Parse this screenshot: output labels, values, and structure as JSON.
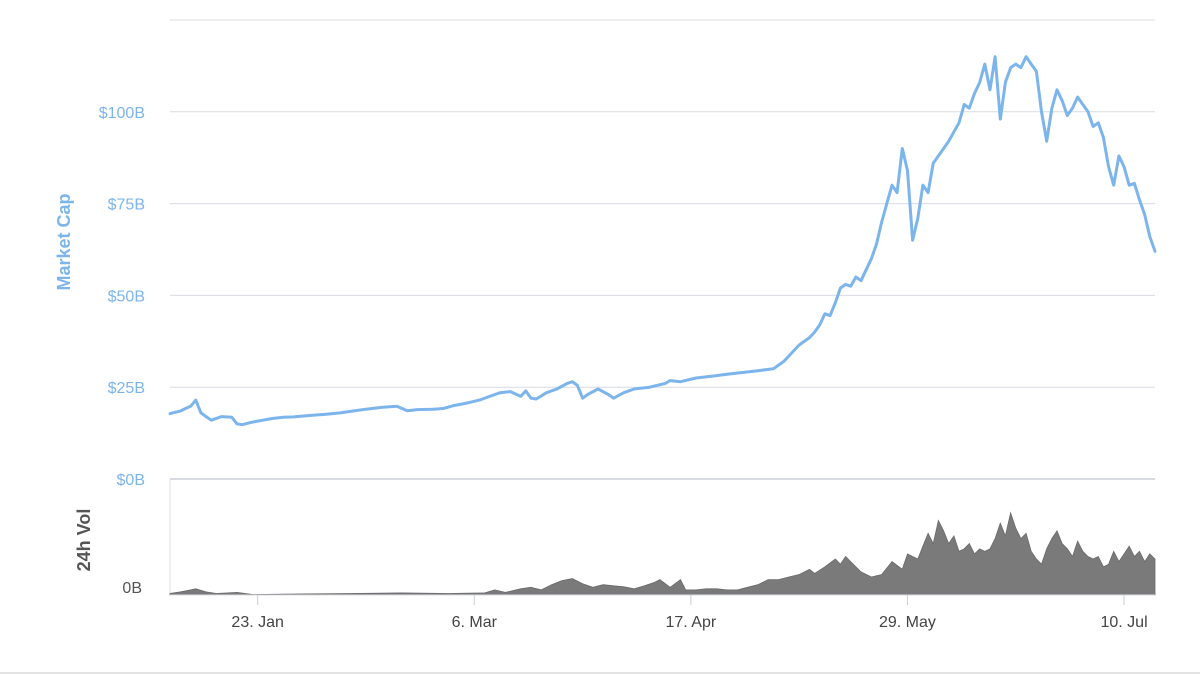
{
  "chart_data": [
    {
      "type": "line",
      "ylabel": "Market Cap",
      "ylim": [
        0,
        125
      ],
      "y_ticks": [
        {
          "value": 0,
          "label": "$0B"
        },
        {
          "value": 25,
          "label": "$25B"
        },
        {
          "value": 50,
          "label": "$50B"
        },
        {
          "value": 75,
          "label": "$75B"
        },
        {
          "value": 100,
          "label": "$100B"
        }
      ],
      "grid": true,
      "color": "#7cb5ec",
      "y_unit": "USD billions",
      "x_range": [
        "2017-01-06",
        "2017-07-16"
      ],
      "series": [
        {
          "points": [
            [
              "2017-01-06",
              17.8
            ],
            [
              "2017-01-08",
              18.5
            ],
            [
              "2017-01-09",
              19.2
            ],
            [
              "2017-01-10",
              19.8
            ],
            [
              "2017-01-11",
              21.5
            ],
            [
              "2017-01-12",
              18.0
            ],
            [
              "2017-01-13",
              17.0
            ],
            [
              "2017-01-14",
              16.0
            ],
            [
              "2017-01-16",
              17.0
            ],
            [
              "2017-01-18",
              16.8
            ],
            [
              "2017-01-19",
              15.0
            ],
            [
              "2017-01-20",
              14.8
            ],
            [
              "2017-01-22",
              15.5
            ],
            [
              "2017-01-24",
              16.0
            ],
            [
              "2017-01-26",
              16.5
            ],
            [
              "2017-01-28",
              16.8
            ],
            [
              "2017-01-30",
              16.9
            ],
            [
              "2017-02-02",
              17.3
            ],
            [
              "2017-02-05",
              17.6
            ],
            [
              "2017-02-08",
              18.0
            ],
            [
              "2017-02-10",
              18.4
            ],
            [
              "2017-02-13",
              19.0
            ],
            [
              "2017-02-16",
              19.5
            ],
            [
              "2017-02-19",
              19.8
            ],
            [
              "2017-02-21",
              18.6
            ],
            [
              "2017-02-23",
              18.9
            ],
            [
              "2017-02-26",
              19.0
            ],
            [
              "2017-02-28",
              19.2
            ],
            [
              "2017-03-02",
              20.0
            ],
            [
              "2017-03-05",
              20.8
            ],
            [
              "2017-03-07",
              21.5
            ],
            [
              "2017-03-09",
              22.5
            ],
            [
              "2017-03-11",
              23.5
            ],
            [
              "2017-03-13",
              23.8
            ],
            [
              "2017-03-15",
              22.5
            ],
            [
              "2017-03-16",
              24.0
            ],
            [
              "2017-03-17",
              22.0
            ],
            [
              "2017-03-18",
              21.8
            ],
            [
              "2017-03-20",
              23.5
            ],
            [
              "2017-03-22",
              24.5
            ],
            [
              "2017-03-24",
              26.0
            ],
            [
              "2017-03-25",
              26.5
            ],
            [
              "2017-03-26",
              25.5
            ],
            [
              "2017-03-27",
              22.0
            ],
            [
              "2017-03-28",
              23.0
            ],
            [
              "2017-03-30",
              24.5
            ],
            [
              "2017-04-01",
              23.0
            ],
            [
              "2017-04-02",
              22.0
            ],
            [
              "2017-04-04",
              23.5
            ],
            [
              "2017-04-06",
              24.5
            ],
            [
              "2017-04-09",
              25.0
            ],
            [
              "2017-04-12",
              26.0
            ],
            [
              "2017-04-13",
              26.8
            ],
            [
              "2017-04-15",
              26.5
            ],
            [
              "2017-04-18",
              27.5
            ],
            [
              "2017-04-21",
              28.0
            ],
            [
              "2017-04-24",
              28.5
            ],
            [
              "2017-04-27",
              29.0
            ],
            [
              "2017-04-30",
              29.5
            ],
            [
              "2017-05-03",
              30.0
            ],
            [
              "2017-05-05",
              32.0
            ],
            [
              "2017-05-07",
              35.0
            ],
            [
              "2017-05-08",
              36.5
            ],
            [
              "2017-05-10",
              38.5
            ],
            [
              "2017-05-11",
              40.0
            ],
            [
              "2017-05-12",
              42.0
            ],
            [
              "2017-05-13",
              45.0
            ],
            [
              "2017-05-14",
              44.5
            ],
            [
              "2017-05-15",
              48.0
            ],
            [
              "2017-05-16",
              52.0
            ],
            [
              "2017-05-17",
              53.0
            ],
            [
              "2017-05-18",
              52.5
            ],
            [
              "2017-05-19",
              55.0
            ],
            [
              "2017-05-20",
              54.0
            ],
            [
              "2017-05-21",
              57.0
            ],
            [
              "2017-05-22",
              60.0
            ],
            [
              "2017-05-23",
              64.0
            ],
            [
              "2017-05-24",
              70.0
            ],
            [
              "2017-05-25",
              75.0
            ],
            [
              "2017-05-26",
              80.0
            ],
            [
              "2017-05-27",
              78.0
            ],
            [
              "2017-05-28",
              90.0
            ],
            [
              "2017-05-29",
              84.0
            ],
            [
              "2017-05-30",
              65.0
            ],
            [
              "2017-05-31",
              71.0
            ],
            [
              "2017-06-01",
              80.0
            ],
            [
              "2017-06-02",
              78.0
            ],
            [
              "2017-06-03",
              86.0
            ],
            [
              "2017-06-04",
              88.0
            ],
            [
              "2017-06-05",
              90.0
            ],
            [
              "2017-06-06",
              92.0
            ],
            [
              "2017-06-08",
              97.0
            ],
            [
              "2017-06-09",
              102.0
            ],
            [
              "2017-06-10",
              101.0
            ],
            [
              "2017-06-11",
              105.0
            ],
            [
              "2017-06-12",
              108.0
            ],
            [
              "2017-06-13",
              113.0
            ],
            [
              "2017-06-14",
              106.0
            ],
            [
              "2017-06-15",
              115.0
            ],
            [
              "2017-06-16",
              98.0
            ],
            [
              "2017-06-17",
              108.0
            ],
            [
              "2017-06-18",
              112.0
            ],
            [
              "2017-06-19",
              113.0
            ],
            [
              "2017-06-20",
              112.0
            ],
            [
              "2017-06-21",
              115.0
            ],
            [
              "2017-06-22",
              113.0
            ],
            [
              "2017-06-23",
              111.0
            ],
            [
              "2017-06-24",
              100.0
            ],
            [
              "2017-06-25",
              92.0
            ],
            [
              "2017-06-26",
              101.0
            ],
            [
              "2017-06-27",
              106.0
            ],
            [
              "2017-06-28",
              103.0
            ],
            [
              "2017-06-29",
              99.0
            ],
            [
              "2017-06-30",
              101.0
            ],
            [
              "2017-07-01",
              104.0
            ],
            [
              "2017-07-02",
              102.0
            ],
            [
              "2017-07-03",
              100.0
            ],
            [
              "2017-07-04",
              96.0
            ],
            [
              "2017-07-05",
              97.0
            ],
            [
              "2017-07-06",
              93.0
            ],
            [
              "2017-07-07",
              85.0
            ],
            [
              "2017-07-08",
              80.0
            ],
            [
              "2017-07-09",
              88.0
            ],
            [
              "2017-07-10",
              85.0
            ],
            [
              "2017-07-11",
              80.0
            ],
            [
              "2017-07-12",
              80.5
            ],
            [
              "2017-07-13",
              76.0
            ],
            [
              "2017-07-14",
              72.0
            ],
            [
              "2017-07-15",
              66.0
            ],
            [
              "2017-07-16",
              62.0
            ]
          ]
        }
      ]
    },
    {
      "type": "area",
      "ylabel": "24h Vol",
      "y_ticks": [
        {
          "value": 0,
          "label": "0B"
        }
      ],
      "color": "#7a7a7a",
      "y_unit": "USD billions",
      "ylim": [
        0,
        2.2
      ],
      "x_range": [
        "2017-01-06",
        "2017-07-16"
      ],
      "x_ticks": [
        {
          "value": "2017-01-23",
          "label": "23. Jan"
        },
        {
          "value": "2017-03-06",
          "label": "6. Mar"
        },
        {
          "value": "2017-04-17",
          "label": "17. Apr"
        },
        {
          "value": "2017-05-29",
          "label": "29. May"
        },
        {
          "value": "2017-07-10",
          "label": "10. Jul"
        }
      ],
      "series": [
        {
          "points": [
            [
              "2017-01-06",
              0.03
            ],
            [
              "2017-01-08",
              0.06
            ],
            [
              "2017-01-10",
              0.1
            ],
            [
              "2017-01-11",
              0.12
            ],
            [
              "2017-01-13",
              0.06
            ],
            [
              "2017-01-15",
              0.03
            ],
            [
              "2017-01-19",
              0.05
            ],
            [
              "2017-01-22",
              0.01
            ],
            [
              "2017-01-30",
              0.02
            ],
            [
              "2017-02-10",
              0.03
            ],
            [
              "2017-02-20",
              0.04
            ],
            [
              "2017-03-01",
              0.03
            ],
            [
              "2017-03-08",
              0.04
            ],
            [
              "2017-03-10",
              0.1
            ],
            [
              "2017-03-12",
              0.05
            ],
            [
              "2017-03-15",
              0.12
            ],
            [
              "2017-03-17",
              0.15
            ],
            [
              "2017-03-19",
              0.1
            ],
            [
              "2017-03-21",
              0.2
            ],
            [
              "2017-03-23",
              0.28
            ],
            [
              "2017-03-25",
              0.32
            ],
            [
              "2017-03-27",
              0.22
            ],
            [
              "2017-03-29",
              0.15
            ],
            [
              "2017-03-31",
              0.2
            ],
            [
              "2017-04-02",
              0.18
            ],
            [
              "2017-04-04",
              0.16
            ],
            [
              "2017-04-06",
              0.12
            ],
            [
              "2017-04-08",
              0.18
            ],
            [
              "2017-04-10",
              0.25
            ],
            [
              "2017-04-11",
              0.3
            ],
            [
              "2017-04-13",
              0.15
            ],
            [
              "2017-04-15",
              0.3
            ],
            [
              "2017-04-16",
              0.1
            ],
            [
              "2017-04-18",
              0.1
            ],
            [
              "2017-04-20",
              0.12
            ],
            [
              "2017-04-22",
              0.12
            ],
            [
              "2017-04-24",
              0.1
            ],
            [
              "2017-04-26",
              0.1
            ],
            [
              "2017-04-28",
              0.15
            ],
            [
              "2017-04-30",
              0.2
            ],
            [
              "2017-05-02",
              0.3
            ],
            [
              "2017-05-04",
              0.3
            ],
            [
              "2017-05-06",
              0.35
            ],
            [
              "2017-05-08",
              0.4
            ],
            [
              "2017-05-10",
              0.5
            ],
            [
              "2017-05-11",
              0.42
            ],
            [
              "2017-05-13",
              0.55
            ],
            [
              "2017-05-15",
              0.7
            ],
            [
              "2017-05-16",
              0.6
            ],
            [
              "2017-05-17",
              0.75
            ],
            [
              "2017-05-18",
              0.65
            ],
            [
              "2017-05-20",
              0.45
            ],
            [
              "2017-05-22",
              0.35
            ],
            [
              "2017-05-24",
              0.4
            ],
            [
              "2017-05-26",
              0.65
            ],
            [
              "2017-05-28",
              0.5
            ],
            [
              "2017-05-29",
              0.8
            ],
            [
              "2017-05-30",
              0.75
            ],
            [
              "2017-05-31",
              0.7
            ],
            [
              "2017-06-01",
              0.95
            ],
            [
              "2017-06-02",
              1.2
            ],
            [
              "2017-06-03",
              1.0
            ],
            [
              "2017-06-04",
              1.45
            ],
            [
              "2017-06-05",
              1.25
            ],
            [
              "2017-06-06",
              1.0
            ],
            [
              "2017-06-07",
              1.15
            ],
            [
              "2017-06-08",
              0.85
            ],
            [
              "2017-06-09",
              0.9
            ],
            [
              "2017-06-10",
              1.0
            ],
            [
              "2017-06-11",
              0.8
            ],
            [
              "2017-06-12",
              0.9
            ],
            [
              "2017-06-13",
              0.85
            ],
            [
              "2017-06-14",
              0.9
            ],
            [
              "2017-06-15",
              1.1
            ],
            [
              "2017-06-16",
              1.4
            ],
            [
              "2017-06-17",
              1.15
            ],
            [
              "2017-06-18",
              1.6
            ],
            [
              "2017-06-19",
              1.3
            ],
            [
              "2017-06-20",
              1.1
            ],
            [
              "2017-06-21",
              1.2
            ],
            [
              "2017-06-22",
              0.85
            ],
            [
              "2017-06-23",
              0.7
            ],
            [
              "2017-06-24",
              0.6
            ],
            [
              "2017-06-25",
              0.9
            ],
            [
              "2017-06-26",
              1.1
            ],
            [
              "2017-06-27",
              1.25
            ],
            [
              "2017-06-28",
              1.0
            ],
            [
              "2017-06-29",
              0.9
            ],
            [
              "2017-06-30",
              0.75
            ],
            [
              "2017-07-01",
              1.05
            ],
            [
              "2017-07-02",
              0.85
            ],
            [
              "2017-07-03",
              0.75
            ],
            [
              "2017-07-04",
              0.7
            ],
            [
              "2017-07-05",
              0.75
            ],
            [
              "2017-07-06",
              0.55
            ],
            [
              "2017-07-07",
              0.6
            ],
            [
              "2017-07-08",
              0.85
            ],
            [
              "2017-07-09",
              0.65
            ],
            [
              "2017-07-10",
              0.8
            ],
            [
              "2017-07-11",
              0.95
            ],
            [
              "2017-07-12",
              0.75
            ],
            [
              "2017-07-13",
              0.85
            ],
            [
              "2017-07-14",
              0.65
            ],
            [
              "2017-07-15",
              0.8
            ],
            [
              "2017-07-16",
              0.7
            ]
          ]
        }
      ]
    }
  ]
}
